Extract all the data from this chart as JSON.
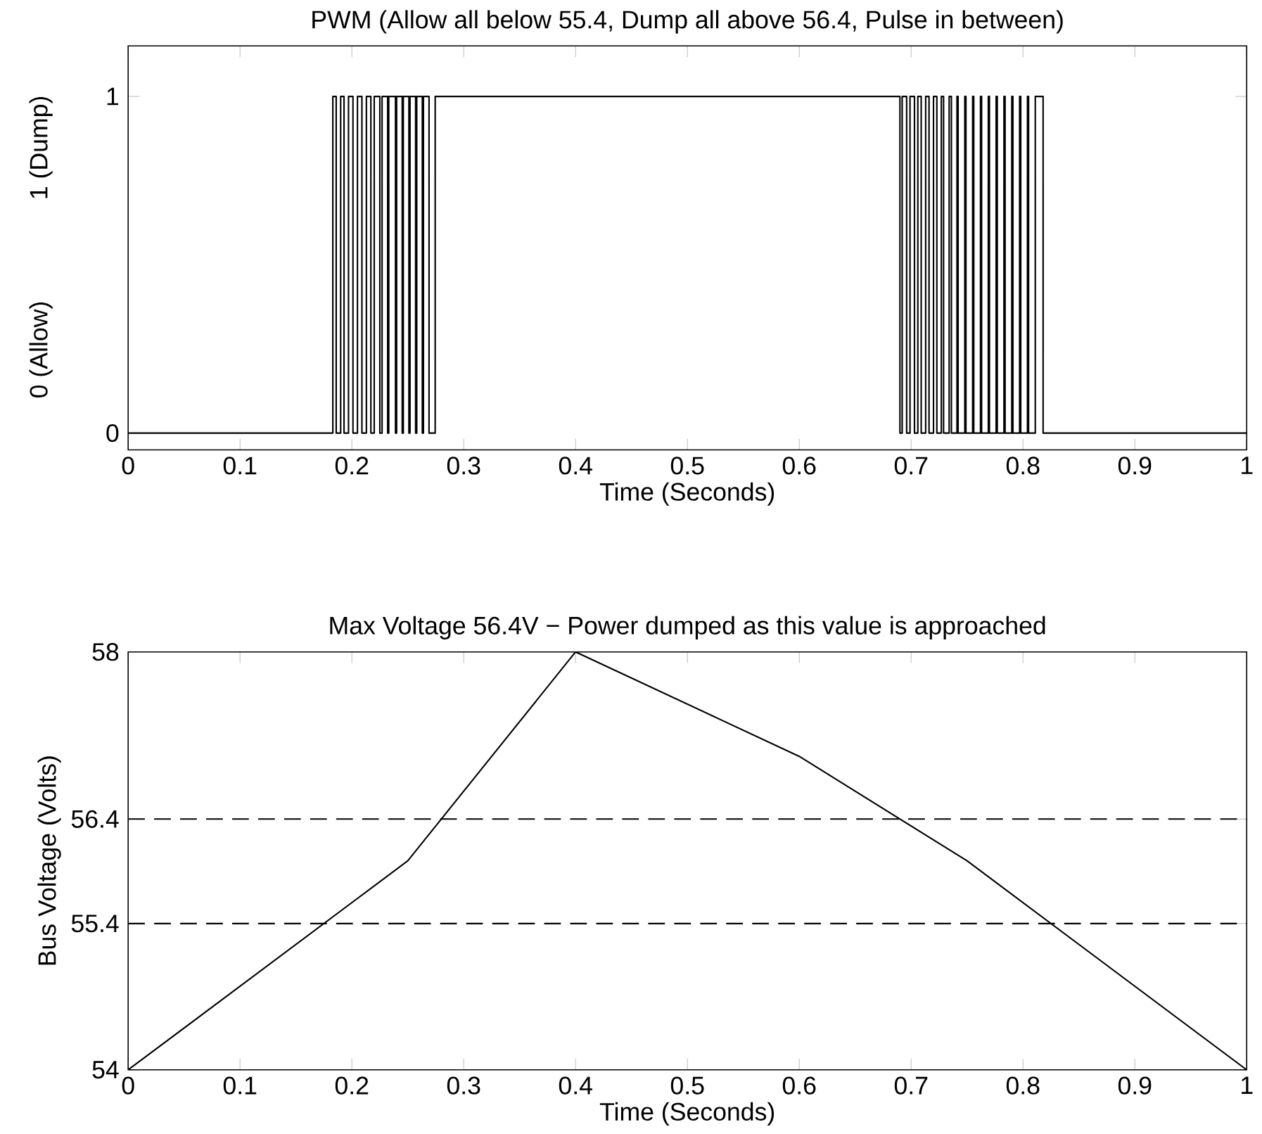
{
  "chart_data": [
    {
      "type": "step",
      "title": "PWM (Allow all below 55.4, Dump all above 56.4, Pulse in between)",
      "xlabel": "Time (Seconds)",
      "annotations": [
        "0 (Allow)",
        "1 (Dump)"
      ],
      "x": [
        0,
        0.183,
        0.186,
        0.19,
        0.193,
        0.197,
        0.201,
        0.205,
        0.209,
        0.213,
        0.217,
        0.22,
        0.225,
        0.227,
        0.232,
        0.233,
        0.239,
        0.24,
        0.245,
        0.246,
        0.251,
        0.252,
        0.257,
        0.258,
        0.263,
        0.264,
        0.269,
        0.2745,
        0.69,
        0.692,
        0.696,
        0.699,
        0.703,
        0.706,
        0.709,
        0.713,
        0.716,
        0.72,
        0.723,
        0.727,
        0.729,
        0.734,
        0.736,
        0.741,
        0.742,
        0.748,
        0.749,
        0.755,
        0.756,
        0.762,
        0.763,
        0.769,
        0.77,
        0.776,
        0.777,
        0.783,
        0.784,
        0.79,
        0.791,
        0.797,
        0.798,
        0.804,
        0.805,
        0.811,
        0.818,
        1
      ],
      "values": [
        0,
        1,
        0,
        1,
        0,
        1,
        0,
        1,
        0,
        1,
        0,
        1,
        0,
        1,
        0,
        1,
        0,
        1,
        0,
        1,
        0,
        1,
        0,
        1,
        0,
        1,
        0,
        1,
        0,
        1,
        0,
        1,
        0,
        1,
        0,
        1,
        0,
        1,
        0,
        1,
        0,
        1,
        0,
        1,
        0,
        1,
        0,
        1,
        0,
        1,
        0,
        1,
        0,
        1,
        0,
        1,
        0,
        1,
        0,
        1,
        0,
        1,
        0,
        1,
        0,
        0
      ],
      "color": "#000000",
      "xlim": [
        0,
        1
      ],
      "xticks": [
        0,
        0.1,
        0.2,
        0.3,
        0.4,
        0.5,
        0.6,
        0.7,
        0.8,
        0.9,
        1
      ],
      "ylim": [
        -0.05,
        1.15
      ],
      "yticks": [
        0,
        1
      ]
    },
    {
      "type": "line",
      "title": "Max Voltage 56.4V − Power dumped as this value is approached",
      "xlabel": "Time (Seconds)",
      "ylabel": "Bus Voltage (Volts)",
      "x": [
        0,
        0.25,
        0.4,
        0.6,
        0.75,
        1
      ],
      "values": [
        54,
        56.0,
        58,
        57.0,
        56.0,
        54
      ],
      "color": "#000000",
      "xlim": [
        0,
        1
      ],
      "xticks": [
        0,
        0.1,
        0.2,
        0.3,
        0.4,
        0.5,
        0.6,
        0.7,
        0.8,
        0.9,
        1
      ],
      "ylim": [
        54,
        58
      ],
      "yticks": [
        54,
        55.4,
        56.4,
        58
      ],
      "ref_lines": [
        {
          "axis": "y",
          "value": 55.4,
          "line_style": "dashed"
        },
        {
          "axis": "y",
          "value": 56.4,
          "line_style": "dashed"
        }
      ]
    }
  ]
}
